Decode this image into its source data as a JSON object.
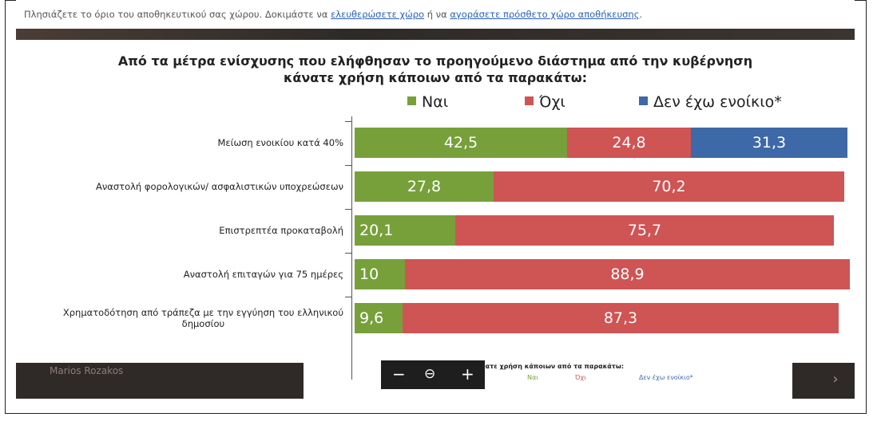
{
  "notice": {
    "text_before": "Πλησιάζετε το όριο του αποθηκευτικού σας χώρου. Δοκιμάστε να ",
    "link1": "ελευθερώσετε χώρο",
    "text_middle": " ή να ",
    "link2": "αγοράσετε πρόσθετο χώρο αποθήκευσης",
    "text_after": "."
  },
  "chart_data": {
    "type": "bar",
    "orientation": "horizontal-stacked-100",
    "title": "Από τα μέτρα ενίσχυσης που ελήφθησαν το προηγούμενο διάστημα από την κυβέρνηση κάνατε χρήση κάποιων από τα παρακάτω:",
    "title_line1": "Από τα μέτρα ενίσχυσης που ελήφθησαν το προηγούμενο διάστημα από την κυβέρνηση",
    "title_line2": "κάνατε χρήση κάποιων από τα παρακάτω:",
    "categories": [
      "Μείωση ενοικίου κατά 40%",
      "Αναστολή φορολογικών/ ασφαλιστικών υποχρεώσεων",
      "Επιστρεπτέα προκαταβολή",
      "Αναστολή επιταγών για 75 ημέρες",
      "Χρηματοδότηση από τράπεζα με την εγγύηση του ελληνικού δημοσίου"
    ],
    "category_lines": [
      [
        "Μείωση ενοικίου κατά 40%"
      ],
      [
        "Αναστολή φορολογικών/ ασφαλιστικών υποχρεώσεων"
      ],
      [
        "Επιστρεπτέα προκαταβολή"
      ],
      [
        "Αναστολή επιταγών για 75 ημέρες"
      ],
      [
        "Χρηματοδότηση από τράπεζα με την εγγύηση του ελληνικού",
        "δημοσίου"
      ]
    ],
    "series": [
      {
        "name": "Ναι",
        "color": "#77a03a",
        "values": [
          42.5,
          27.8,
          20.1,
          10,
          9.6
        ],
        "labels": [
          "42,5",
          "27,8",
          "20,1",
          "10",
          "9,6"
        ]
      },
      {
        "name": "Όχι",
        "color": "#cf5454",
        "values": [
          24.8,
          70.2,
          75.7,
          88.9,
          87.3
        ],
        "labels": [
          "24,8",
          "70,2",
          "75,7",
          "88,9",
          "87,3"
        ]
      },
      {
        "name": "Δεν έχω ενοίκιο*",
        "color": "#3e69a8",
        "values": [
          31.3,
          null,
          null,
          null,
          null
        ],
        "labels": [
          "31,3",
          "",
          "",
          "",
          ""
        ]
      }
    ],
    "xlim": [
      0,
      100
    ],
    "legend": "top",
    "grid": false
  },
  "viewer": {
    "zoom_out": "−",
    "zoom_reset": "⊖",
    "zoom_in": "+",
    "next": "›"
  },
  "background": {
    "user_name": "Marios Rozakos",
    "thumb_title": "κάνατε χρήση κάποιων από τα παρακάτω:",
    "thumb_legend": [
      "Ναι",
      "Όχι",
      "Δεν έχω ενοίκιο*"
    ]
  }
}
